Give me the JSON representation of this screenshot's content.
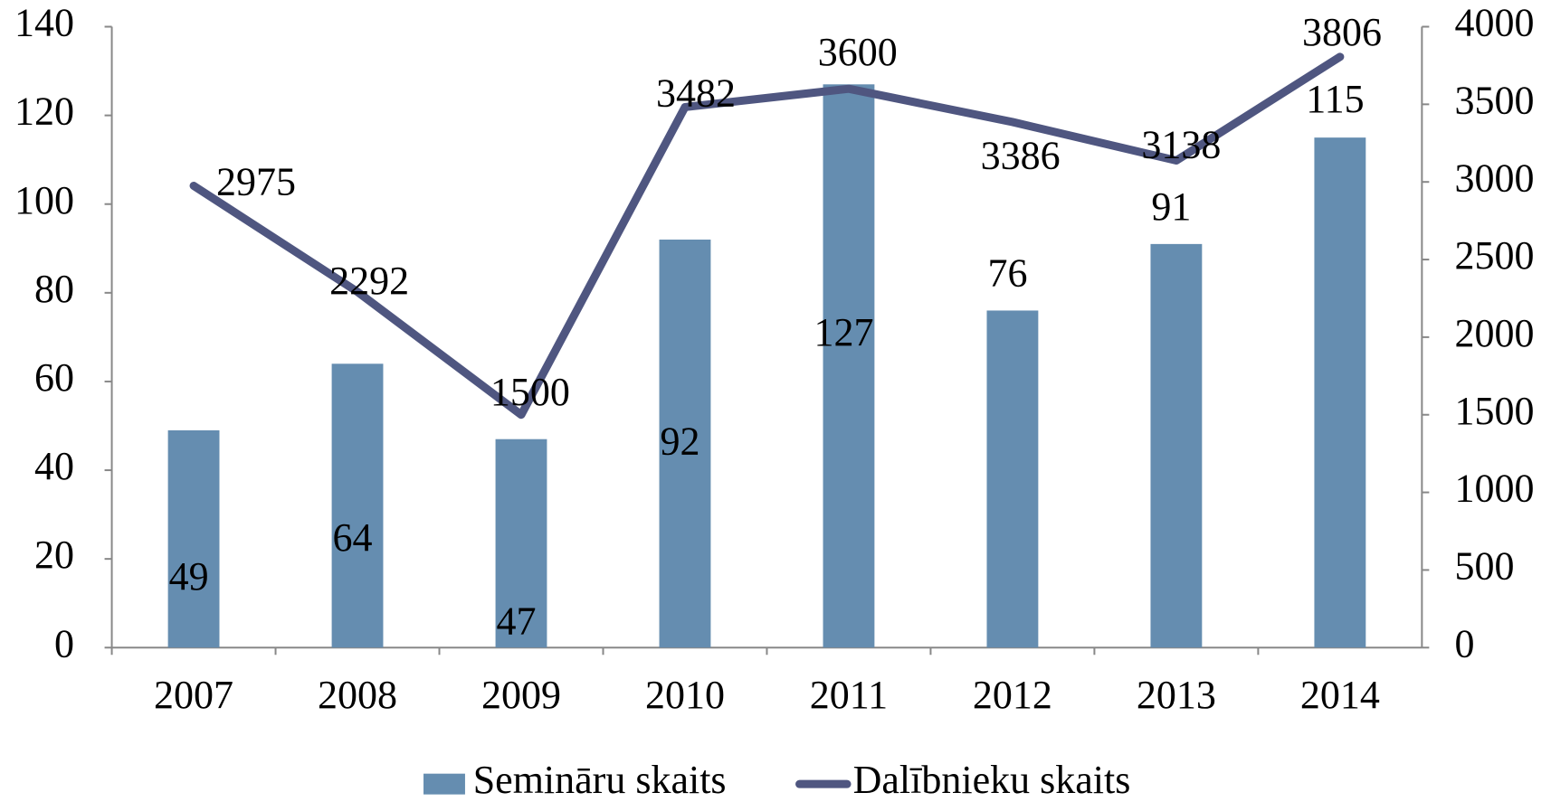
{
  "chart_data": {
    "type": "bar_line",
    "categories": [
      "2007",
      "2008",
      "2009",
      "2010",
      "2011",
      "2012",
      "2013",
      "2014"
    ],
    "series": [
      {
        "name": "Semināru skaits",
        "type": "bar",
        "color": "#658db0",
        "values": [
          49,
          64,
          47,
          92,
          127,
          76,
          91,
          115
        ]
      },
      {
        "name": "Dalībnieku skaits",
        "type": "line",
        "axis": "y2",
        "color": "#4f5680",
        "values": [
          2975,
          2292,
          1500,
          3482,
          3600,
          3386,
          3138,
          3806
        ]
      }
    ],
    "ylim": [
      0,
      140
    ],
    "yticks": [
      0,
      20,
      40,
      60,
      80,
      100,
      120,
      140
    ],
    "y2lim": [
      0,
      4000
    ],
    "y2ticks": [
      0,
      500,
      1000,
      1500,
      2000,
      2500,
      3000,
      3500,
      4000
    ],
    "legend": "bottom"
  }
}
